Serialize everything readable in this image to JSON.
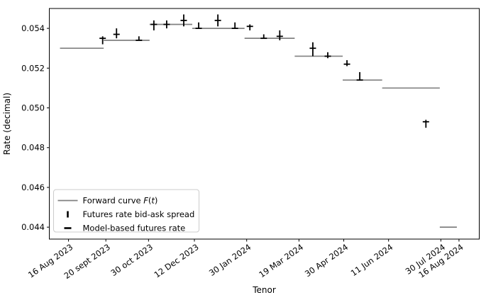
{
  "figure": {
    "background": "#ffffff"
  },
  "chart_data": {
    "type": "line",
    "subtype": "piecewise-constant forward curve with futures bid-ask errorbars and model-rate dash markers",
    "title": "",
    "xlabel": "Tenor",
    "ylabel": "Rate (decimal)",
    "grid": false,
    "x_unit_note": "x positions encoded as day offsets from first tick (16 Aug 2023 = day 0)",
    "xlim_days": [
      -18,
      385
    ],
    "ylim": [
      0.0434,
      0.055
    ],
    "x_ticks": [
      {
        "label": "16 Aug 2023",
        "day": 0
      },
      {
        "label": "20 sept 2023",
        "day": 35
      },
      {
        "label": "30 oct 2023",
        "day": 75
      },
      {
        "label": "12 Dec 2023",
        "day": 118
      },
      {
        "label": "30 Jan 2024",
        "day": 167
      },
      {
        "label": "19 Mar 2024",
        "day": 216
      },
      {
        "label": "30 Apr 2024",
        "day": 258
      },
      {
        "label": "11 Jun 2024",
        "day": 300
      },
      {
        "label": "30 Jul 2024",
        "day": 349
      },
      {
        "label": "16 Aug 2024",
        "day": 366
      }
    ],
    "y_ticks": [
      {
        "label": "0.044",
        "value": 0.044
      },
      {
        "label": "0.046",
        "value": 0.046
      },
      {
        "label": "0.048",
        "value": 0.048
      },
      {
        "label": "0.050",
        "value": 0.05
      },
      {
        "label": "0.052",
        "value": 0.052
      },
      {
        "label": "0.054",
        "value": 0.054
      }
    ],
    "forward_curve": {
      "name": "Forward curve F(t)",
      "color": "#808080",
      "segments": [
        {
          "start_day": -8,
          "end_day": 33,
          "rate": 0.053
        },
        {
          "start_day": 33,
          "end_day": 76,
          "rate": 0.0534
        },
        {
          "start_day": 76,
          "end_day": 116,
          "rate": 0.0542
        },
        {
          "start_day": 116,
          "end_day": 165,
          "rate": 0.054
        },
        {
          "start_day": 165,
          "end_day": 212,
          "rate": 0.0535
        },
        {
          "start_day": 212,
          "end_day": 257,
          "rate": 0.0526
        },
        {
          "start_day": 257,
          "end_day": 294,
          "rate": 0.0514
        },
        {
          "start_day": 294,
          "end_day": 348,
          "rate": 0.051
        },
        {
          "start_day": 348,
          "end_day": 364,
          "rate": 0.044
        }
      ]
    },
    "futures": {
      "spread_name": "Futures rate bid-ask spread",
      "model_name": "Model-based futures rate",
      "color": "#000000",
      "points": [
        {
          "day": 32,
          "bid_ask_low": 0.0532,
          "bid_ask_high": 0.0536,
          "model_rate": 0.0535
        },
        {
          "day": 45,
          "bid_ask_low": 0.0535,
          "bid_ask_high": 0.054,
          "model_rate": 0.0537
        },
        {
          "day": 66,
          "bid_ask_low": 0.0534,
          "bid_ask_high": 0.0536,
          "model_rate": 0.0534
        },
        {
          "day": 80,
          "bid_ask_low": 0.0539,
          "bid_ask_high": 0.0544,
          "model_rate": 0.0542
        },
        {
          "day": 92,
          "bid_ask_low": 0.054,
          "bid_ask_high": 0.0544,
          "model_rate": 0.0542
        },
        {
          "day": 108,
          "bid_ask_low": 0.0541,
          "bid_ask_high": 0.0547,
          "model_rate": 0.0544
        },
        {
          "day": 122,
          "bid_ask_low": 0.054,
          "bid_ask_high": 0.0543,
          "model_rate": 0.054
        },
        {
          "day": 140,
          "bid_ask_low": 0.0541,
          "bid_ask_high": 0.0547,
          "model_rate": 0.0544
        },
        {
          "day": 156,
          "bid_ask_low": 0.054,
          "bid_ask_high": 0.0543,
          "model_rate": 0.054
        },
        {
          "day": 170,
          "bid_ask_low": 0.0539,
          "bid_ask_high": 0.0542,
          "model_rate": 0.0541
        },
        {
          "day": 183,
          "bid_ask_low": 0.0535,
          "bid_ask_high": 0.0537,
          "model_rate": 0.0535
        },
        {
          "day": 198,
          "bid_ask_low": 0.0534,
          "bid_ask_high": 0.0539,
          "model_rate": 0.0536
        },
        {
          "day": 229,
          "bid_ask_low": 0.0526,
          "bid_ask_high": 0.0533,
          "model_rate": 0.053
        },
        {
          "day": 243,
          "bid_ask_low": 0.0525,
          "bid_ask_high": 0.0528,
          "model_rate": 0.0526
        },
        {
          "day": 261,
          "bid_ask_low": 0.0521,
          "bid_ask_high": 0.0524,
          "model_rate": 0.0522
        },
        {
          "day": 273,
          "bid_ask_low": 0.0514,
          "bid_ask_high": 0.0518,
          "model_rate": 0.0514
        },
        {
          "day": 335,
          "bid_ask_low": 0.049,
          "bid_ask_high": 0.0494,
          "model_rate": 0.0493
        }
      ]
    },
    "legend": {
      "position": "lower left",
      "border_color": "#cccccc",
      "entries": [
        {
          "label": "Forward curve F(t)",
          "swatch": "line",
          "color": "#808080",
          "label_parts": [
            {
              "text": "Forward curve ",
              "italic": false
            },
            {
              "text": "F",
              "italic": true
            },
            {
              "text": "(",
              "italic": false
            },
            {
              "text": "t",
              "italic": true
            },
            {
              "text": ")",
              "italic": false
            }
          ]
        },
        {
          "label": "Futures rate bid-ask spread",
          "swatch": "vbar",
          "color": "#000000",
          "label_parts": [
            {
              "text": "Futures rate bid-ask spread",
              "italic": false
            }
          ]
        },
        {
          "label": "Model-based futures rate",
          "swatch": "hdash",
          "color": "#000000",
          "label_parts": [
            {
              "text": "Model-based futures rate",
              "italic": false
            }
          ]
        }
      ]
    }
  }
}
